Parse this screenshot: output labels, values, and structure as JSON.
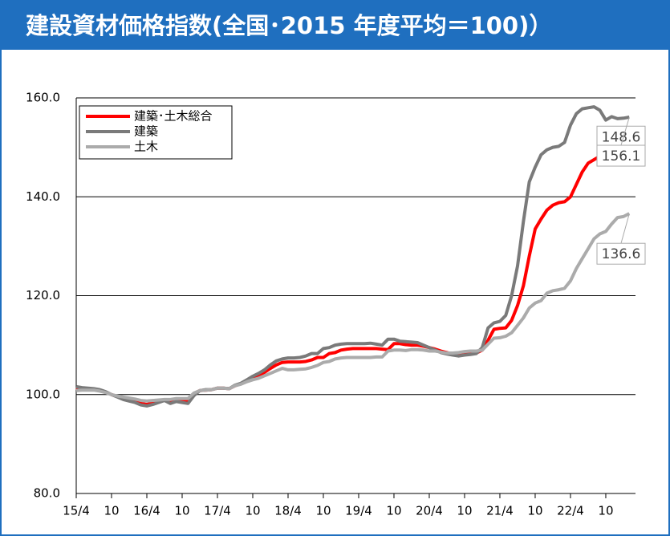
{
  "chart_data": {
    "type": "line",
    "title": "建設資材価格指数(全国･2015 年度平均＝100)）",
    "categories": [
      "15/4",
      null,
      null,
      null,
      null,
      null,
      "10",
      null,
      null,
      null,
      null,
      null,
      "16/4",
      null,
      null,
      null,
      null,
      null,
      "10",
      null,
      null,
      null,
      null,
      null,
      "17/4",
      null,
      null,
      null,
      null,
      null,
      "10",
      null,
      null,
      null,
      null,
      null,
      "18/4",
      null,
      null,
      null,
      null,
      null,
      "10",
      null,
      null,
      null,
      null,
      null,
      "19/4",
      null,
      null,
      null,
      null,
      null,
      "10",
      null,
      null,
      null,
      null,
      null,
      "20/4",
      null,
      null,
      null,
      null,
      null,
      "10",
      null,
      null,
      null,
      null,
      null,
      "21/4",
      null,
      null,
      null,
      null,
      null,
      "10",
      null,
      null,
      null,
      null,
      null,
      "22/4",
      null,
      null,
      null,
      null,
      null,
      "10",
      null,
      null,
      null,
      null
    ],
    "series": [
      {
        "name": "建築･土木総合",
        "color": "#ff0000",
        "values": [
          101.3,
          101.0,
          101.2,
          101.0,
          100.8,
          100.5,
          100.0,
          99.6,
          99.2,
          99.0,
          98.7,
          98.2,
          98.0,
          98.3,
          98.6,
          98.9,
          98.6,
          99.0,
          98.9,
          98.8,
          100.2,
          100.8,
          100.9,
          101.0,
          101.3,
          101.3,
          101.2,
          101.8,
          102.2,
          102.8,
          103.4,
          103.9,
          104.5,
          105.3,
          106.0,
          106.5,
          106.6,
          106.6,
          106.6,
          106.7,
          107.0,
          107.5,
          107.5,
          108.3,
          108.5,
          109.0,
          109.2,
          109.3,
          109.3,
          109.3,
          109.3,
          109.3,
          109.2,
          109.1,
          110.3,
          110.3,
          110.1,
          110.0,
          110.0,
          109.8,
          109.5,
          109.2,
          108.8,
          108.5,
          108.2,
          108.0,
          108.2,
          108.2,
          108.4,
          109.0,
          111.0,
          113.2,
          113.4,
          113.5,
          115.0,
          118.0,
          122.0,
          128.0,
          133.5,
          135.5,
          137.3,
          138.3,
          138.8,
          139.0,
          140.0,
          142.5,
          145.0,
          146.8,
          147.5,
          148.2,
          148.0,
          147.2,
          148.0,
          148.2,
          148.6
        ]
      },
      {
        "name": "建築",
        "color": "#7a7a7a",
        "values": [
          101.6,
          101.4,
          101.3,
          101.2,
          101.0,
          100.6,
          100.0,
          99.5,
          99.0,
          98.7,
          98.4,
          97.9,
          97.7,
          98.0,
          98.4,
          98.8,
          98.2,
          98.6,
          98.4,
          98.2,
          99.8,
          100.8,
          101.0,
          101.0,
          101.3,
          101.3,
          101.2,
          101.9,
          102.3,
          103.0,
          103.7,
          104.3,
          105.0,
          106.0,
          106.8,
          107.2,
          107.4,
          107.4,
          107.5,
          107.8,
          108.3,
          108.3,
          109.3,
          109.5,
          110.0,
          110.2,
          110.3,
          110.3,
          110.3,
          110.3,
          110.4,
          110.2,
          110.0,
          111.2,
          111.2,
          110.8,
          110.7,
          110.6,
          110.5,
          110.0,
          109.5,
          109.0,
          108.5,
          108.2,
          108.0,
          107.8,
          108.0,
          108.1,
          108.3,
          109.5,
          113.5,
          114.5,
          114.8,
          116.0,
          120.0,
          126.0,
          135.0,
          143.0,
          146.0,
          148.5,
          149.5,
          150.0,
          150.2,
          151.0,
          154.5,
          156.8,
          157.8,
          158.0,
          158.2,
          157.5,
          155.5,
          156.2,
          155.8,
          155.9,
          156.1
        ]
      },
      {
        "name": "土木",
        "color": "#ababab",
        "values": [
          100.8,
          100.9,
          100.9,
          100.9,
          100.7,
          100.4,
          100.0,
          99.7,
          99.5,
          99.3,
          99.1,
          98.8,
          98.7,
          98.8,
          98.9,
          99.0,
          99.0,
          99.2,
          99.2,
          99.2,
          100.3,
          100.8,
          100.9,
          101.0,
          101.3,
          101.3,
          101.2,
          101.8,
          102.1,
          102.6,
          103.0,
          103.3,
          103.8,
          104.3,
          104.8,
          105.3,
          105.0,
          105.0,
          105.1,
          105.2,
          105.5,
          105.9,
          106.5,
          106.7,
          107.2,
          107.4,
          107.5,
          107.5,
          107.5,
          107.5,
          107.5,
          107.6,
          107.6,
          108.8,
          109.0,
          109.0,
          108.9,
          109.1,
          109.1,
          109.0,
          108.8,
          108.8,
          108.6,
          108.4,
          108.4,
          108.5,
          108.7,
          108.8,
          108.8,
          109.0,
          110.2,
          111.4,
          111.5,
          111.8,
          112.5,
          114.0,
          115.5,
          117.5,
          118.5,
          119.0,
          120.5,
          121.0,
          121.2,
          121.5,
          123.0,
          125.5,
          127.5,
          129.5,
          131.5,
          132.5,
          133.0,
          134.5,
          135.8,
          136.0,
          136.6
        ]
      }
    ],
    "ylim": [
      80,
      160
    ],
    "yticks": [
      {
        "value": 80,
        "label": "80.0"
      },
      {
        "value": 100,
        "label": "100.0"
      },
      {
        "value": 120,
        "label": "120.0"
      },
      {
        "value": 140,
        "label": "140.0"
      },
      {
        "value": 160,
        "label": "160.0"
      }
    ],
    "grid": true,
    "legend": "upper left"
  }
}
